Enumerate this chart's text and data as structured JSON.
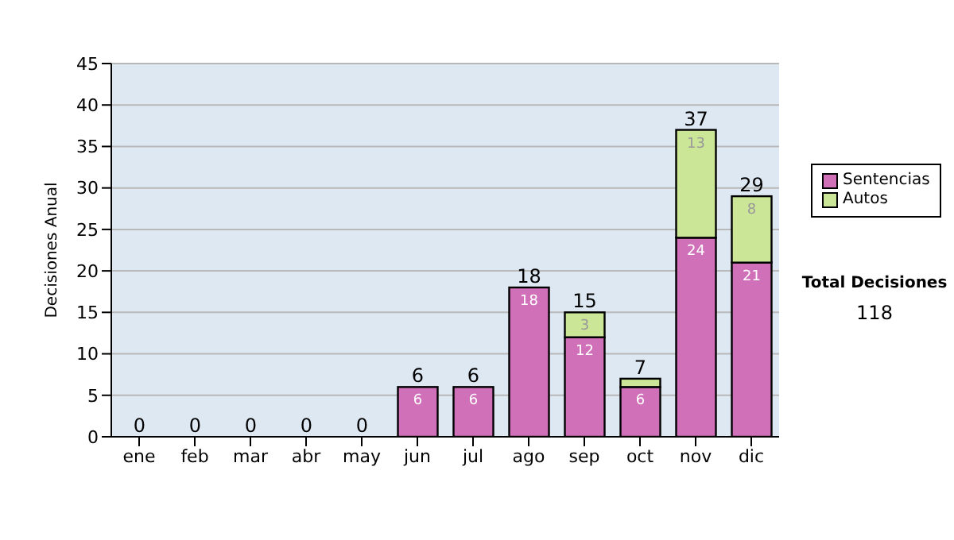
{
  "chart_data": {
    "type": "bar",
    "stacked": true,
    "ylabel": "Decisiones Anual",
    "categories": [
      "ene",
      "feb",
      "mar",
      "abr",
      "may",
      "jun",
      "jul",
      "ago",
      "sep",
      "oct",
      "nov",
      "dic"
    ],
    "series": [
      {
        "name": "Sentencias",
        "color": "#d070b8",
        "values": [
          0,
          0,
          0,
          0,
          0,
          6,
          6,
          18,
          12,
          6,
          24,
          21
        ],
        "value_labels": [
          null,
          null,
          null,
          null,
          null,
          "6",
          "6",
          "18",
          "12",
          "6",
          "24",
          "21"
        ]
      },
      {
        "name": "Autos",
        "color": "#cce698",
        "values": [
          0,
          0,
          0,
          0,
          0,
          0,
          0,
          0,
          3,
          1,
          13,
          8
        ],
        "value_labels": [
          null,
          null,
          null,
          null,
          null,
          null,
          null,
          null,
          "3",
          null,
          "13",
          "8"
        ]
      }
    ],
    "totals": [
      "0",
      "0",
      "0",
      "0",
      "0",
      "6",
      "6",
      "18",
      "15",
      "7",
      "37",
      "29"
    ],
    "ylim": [
      0,
      45
    ],
    "yticks": [
      0,
      5,
      10,
      15,
      20,
      25,
      30,
      35,
      40,
      45
    ],
    "grid": "y",
    "legend": "right",
    "annotations": [
      "Total Decisiones",
      "118"
    ]
  }
}
